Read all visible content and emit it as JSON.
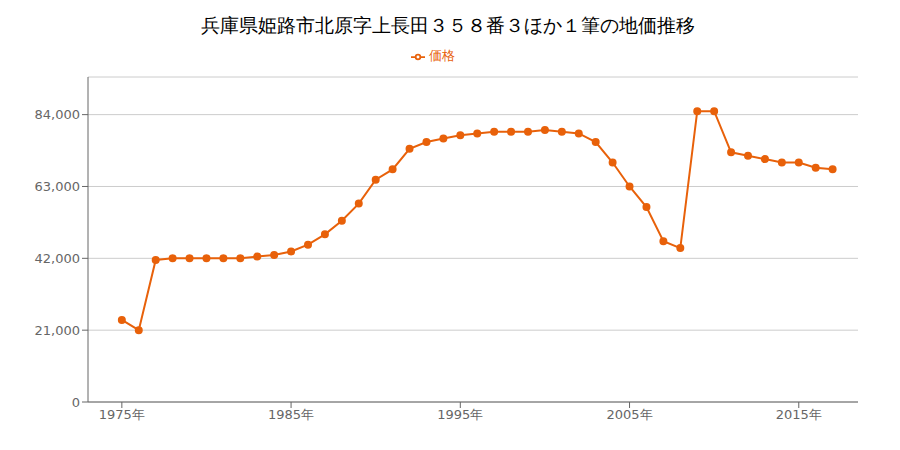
{
  "chart_data": {
    "type": "line",
    "title": "兵庫県姫路市北原字上長田３５８番３ほか１筆の地価推移",
    "x": [
      1975,
      1976,
      1977,
      1978,
      1979,
      1980,
      1981,
      1982,
      1983,
      1984,
      1985,
      1986,
      1987,
      1988,
      1989,
      1990,
      1991,
      1992,
      1993,
      1994,
      1995,
      1996,
      1997,
      1998,
      1999,
      2000,
      2001,
      2002,
      2003,
      2004,
      2005,
      2006,
      2007,
      2008,
      2009,
      2010,
      2011,
      2012,
      2013,
      2014,
      2015,
      2016,
      2017
    ],
    "series": [
      {
        "name": "価格",
        "color": "#E8610A",
        "marker": "circle",
        "values": [
          24000,
          21000,
          41500,
          42000,
          42000,
          42000,
          42000,
          42000,
          42500,
          43000,
          44000,
          46000,
          49000,
          53000,
          58000,
          65000,
          68000,
          74000,
          76000,
          77000,
          78000,
          78500,
          79000,
          79000,
          79000,
          79500,
          79000,
          78500,
          76000,
          70000,
          63000,
          57000,
          47000,
          45000,
          85000,
          85000,
          73000,
          72000,
          71000,
          70000,
          70000,
          68500,
          68000
        ]
      }
    ],
    "xlim": [
      1973,
      2018.5
    ],
    "xticks": [
      {
        "value": 1975,
        "label": "1975年"
      },
      {
        "value": 1985,
        "label": "1985年"
      },
      {
        "value": 1995,
        "label": "1995年"
      },
      {
        "value": 2005,
        "label": "2005年"
      },
      {
        "value": 2015,
        "label": "2015年"
      }
    ],
    "ylim": [
      0,
      95000
    ],
    "yticks": [
      0,
      {
        "value": 21000,
        "label": "21,000"
      },
      {
        "value": 42000,
        "label": "42,000"
      },
      {
        "value": 63000,
        "label": "63,000"
      },
      {
        "value": 84000,
        "label": "84,000"
      }
    ],
    "grid": "y"
  }
}
